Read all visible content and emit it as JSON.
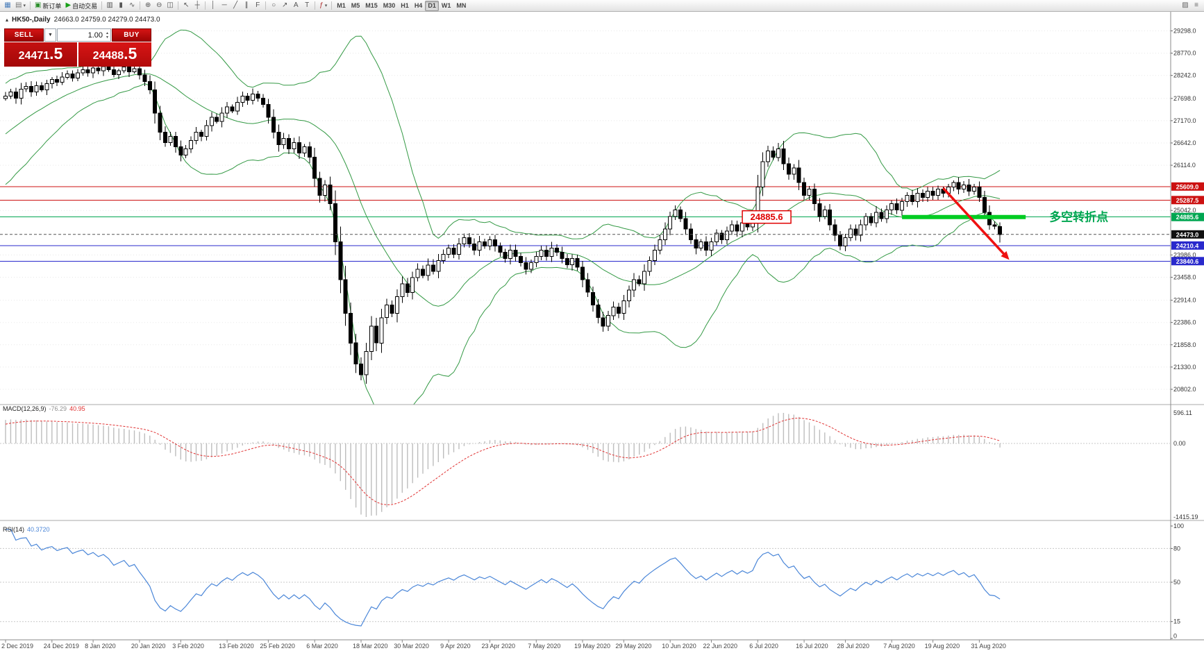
{
  "icons": {
    "caret": "▾",
    "collapse": "▴",
    "dropdown": "▼",
    "spin_up": "▲",
    "spin_down": "▼"
  },
  "toolbar": {
    "groups": [
      {
        "items": [
          {
            "name": "new-chart-button",
            "glyph": "▦",
            "color": "#4a7ebb"
          },
          {
            "name": "chart-profiles-button",
            "glyph": "▤",
            "color": "#777777",
            "caret": true
          }
        ]
      },
      {
        "items": [
          {
            "name": "new-order-button",
            "glyph": "▣",
            "color": "#2d8f2d",
            "label": "新订单"
          },
          {
            "name": "auto-trading-button",
            "glyph": "▶",
            "color": "#18a018",
            "label": "自动交易"
          }
        ]
      },
      {
        "items": [
          {
            "name": "bar-chart-button",
            "glyph": "▥",
            "color": "#555555"
          },
          {
            "name": "candlestick-chart-button",
            "glyph": "▮",
            "color": "#555555"
          },
          {
            "name": "line-chart-button",
            "glyph": "∿",
            "color": "#555555"
          }
        ]
      },
      {
        "items": [
          {
            "name": "zoom-in-button",
            "glyph": "⊕",
            "color": "#555555"
          },
          {
            "name": "zoom-out-button",
            "glyph": "⊖",
            "color": "#555555"
          },
          {
            "name": "tile-windows-button",
            "glyph": "◫",
            "color": "#555555"
          }
        ]
      },
      {
        "items": [
          {
            "name": "cursor-button",
            "glyph": "↖",
            "color": "#555555"
          },
          {
            "name": "crosshair-button",
            "glyph": "┼",
            "color": "#555555"
          }
        ]
      },
      {
        "items": [
          {
            "name": "vertical-line-button",
            "glyph": "│",
            "color": "#555555"
          },
          {
            "name": "horizontal-line-button",
            "glyph": "─",
            "color": "#555555"
          },
          {
            "name": "trendline-button",
            "glyph": "╱",
            "color": "#555555"
          },
          {
            "name": "equidistant-channel-button",
            "glyph": "∥",
            "color": "#555555"
          },
          {
            "name": "fibonacci-button",
            "glyph": "F",
            "color": "#555555"
          }
        ]
      },
      {
        "items": [
          {
            "name": "shapes-button",
            "glyph": "○",
            "color": "#555555"
          },
          {
            "name": "arrows-button",
            "glyph": "↗",
            "color": "#555555"
          },
          {
            "name": "text-button",
            "glyph": "A",
            "color": "#555555"
          },
          {
            "name": "text-label-button",
            "glyph": "T",
            "color": "#555555"
          }
        ]
      },
      {
        "items": [
          {
            "name": "indicators-button",
            "glyph": "ƒ",
            "color": "#b03030",
            "caret": true
          }
        ]
      },
      {
        "timeframes": [
          "M1",
          "M5",
          "M15",
          "M30",
          "H1",
          "H4",
          "D1",
          "W1",
          "MN"
        ],
        "active": "D1"
      }
    ],
    "right_items": [
      {
        "name": "data-window-button",
        "glyph": "▨",
        "color": "#666666"
      },
      {
        "name": "full-screen-button",
        "glyph": "≡",
        "color": "#666666"
      }
    ]
  },
  "header": {
    "symbol": "HK50-,Daily",
    "ohlc": "24663.0 24759.0 24279.0 24473.0"
  },
  "trade_panel": {
    "sell_label": "SELL",
    "buy_label": "BUY",
    "volume": "1.00",
    "sell_price_main": "24471",
    "sell_price_frac": ".5",
    "buy_price_main": "24488",
    "buy_price_frac": ".5"
  },
  "chart_data": {
    "type": "candlestick+indicators",
    "symbol": "HK50-",
    "timeframe": "Daily",
    "last_bar": {
      "open": 24663.0,
      "high": 24759.0,
      "low": 24279.0,
      "close": 24473.0
    },
    "close_series": [
      27750,
      27850,
      27700,
      27920,
      27980,
      27850,
      28000,
      27900,
      28050,
      28150,
      28080,
      28200,
      28280,
      28180,
      28300,
      28380,
      28300,
      28420,
      28350,
      28450,
      28380,
      28260,
      28350,
      28440,
      28330,
      28400,
      28250,
      28100,
      27900,
      27350,
      26900,
      26650,
      26800,
      26550,
      26350,
      26500,
      26700,
      26900,
      26800,
      27050,
      27250,
      27150,
      27350,
      27500,
      27400,
      27600,
      27750,
      27650,
      27800,
      27700,
      27550,
      27250,
      26900,
      26600,
      26750,
      26500,
      26650,
      26400,
      26550,
      26300,
      25800,
      25400,
      25650,
      25200,
      24300,
      23400,
      22600,
      21900,
      21400,
      21150,
      21700,
      22300,
      21900,
      22500,
      22800,
      22600,
      23000,
      23300,
      23100,
      23450,
      23650,
      23500,
      23750,
      23600,
      23850,
      24000,
      24150,
      24000,
      24250,
      24400,
      24250,
      24100,
      24300,
      24200,
      24350,
      24200,
      24050,
      23900,
      24100,
      23950,
      23800,
      23650,
      23800,
      23950,
      24100,
      23950,
      24150,
      24050,
      23900,
      23750,
      23900,
      23700,
      23400,
      23100,
      22800,
      22500,
      22300,
      22550,
      22750,
      22600,
      22900,
      23150,
      23400,
      23300,
      23600,
      23850,
      24100,
      24350,
      24600,
      24900,
      25050,
      24850,
      24600,
      24350,
      24150,
      24300,
      24100,
      24300,
      24500,
      24350,
      24550,
      24700,
      24550,
      24750,
      24650,
      24800,
      25600,
      26200,
      26450,
      26300,
      26500,
      26150,
      25900,
      26050,
      25700,
      25400,
      25550,
      25200,
      24900,
      25050,
      24700,
      24450,
      24200,
      24400,
      24600,
      24450,
      24700,
      24900,
      24750,
      25000,
      24850,
      25050,
      25200,
      25050,
      25250,
      25400,
      25250,
      25450,
      25350,
      25500,
      25400,
      25550,
      25450,
      25600,
      25700,
      25550,
      25650,
      25500,
      25600,
      25350,
      25000,
      24700,
      24663,
      24473
    ],
    "x_axis": {
      "labels": [
        {
          "label": "2 Dec 2019",
          "bar": 0
        },
        {
          "label": "24 Dec 2019",
          "bar": 9
        },
        {
          "label": "8 Jan 2020",
          "bar": 17
        },
        {
          "label": "20 Jan 2020",
          "bar": 26
        },
        {
          "label": "3 Feb 2020",
          "bar": 34
        },
        {
          "label": "13 Feb 2020",
          "bar": 43
        },
        {
          "label": "25 Feb 2020",
          "bar": 51
        },
        {
          "label": "6 Mar 2020",
          "bar": 60
        },
        {
          "label": "18 Mar 2020",
          "bar": 69
        },
        {
          "label": "30 Mar 2020",
          "bar": 77
        },
        {
          "label": "9 Apr 2020",
          "bar": 86
        },
        {
          "label": "23 Apr 2020",
          "bar": 94
        },
        {
          "label": "7 May 2020",
          "bar": 103
        },
        {
          "label": "19 May 2020",
          "bar": 112
        },
        {
          "label": "29 May 2020",
          "bar": 120
        },
        {
          "label": "10 Jun 2020",
          "bar": 129
        },
        {
          "label": "22 Jun 2020",
          "bar": 137
        },
        {
          "label": "6 Jul 2020",
          "bar": 146
        },
        {
          "label": "16 Jul 2020",
          "bar": 155
        },
        {
          "label": "28 Jul 2020",
          "bar": 163
        },
        {
          "label": "7 Aug 2020",
          "bar": 172
        },
        {
          "label": "19 Aug 2020",
          "bar": 180
        },
        {
          "label": "31 Aug 2020",
          "bar": 189
        }
      ]
    },
    "y_axis": {
      "min": 20440,
      "max": 29750,
      "ticks": [
        "29298.0",
        "28770.0",
        "28242.0",
        "27698.0",
        "27170.0",
        "26642.0",
        "26114.0",
        "25042.0",
        "23986.0",
        "23458.0",
        "22914.0",
        "22386.0",
        "21858.0",
        "21330.0",
        "20802.0"
      ]
    },
    "bollinger": {
      "period": 20,
      "deviation": 2,
      "color": "#339944"
    },
    "hlines": [
      {
        "price": 25609.0,
        "label": "25609.0",
        "color": "#cc1111",
        "label_bg": "#cc1111"
      },
      {
        "price": 25287.5,
        "label": "25287.5",
        "color": "#cc1111",
        "label_bg": "#cc1111"
      },
      {
        "price": 24885.6,
        "label": "24885.6",
        "color": "#00a651",
        "label_bg": "#00a651"
      },
      {
        "price": 24210.4,
        "label": "24210.4",
        "color": "#2929cc",
        "label_bg": "#2929cc"
      },
      {
        "price": 23840.6,
        "label": "23840.6",
        "color": "#2929cc",
        "label_bg": "#2929cc"
      }
    ],
    "current_price": {
      "price": 24473.0,
      "label": "24473.0",
      "color": "#111111"
    },
    "annotations": {
      "price_flag": {
        "text": "24885.6",
        "bar": 143,
        "price": 24885.6,
        "color": "#e00000"
      },
      "thick_segment": {
        "price": 24885.6,
        "bar_start": 174,
        "bar_end": 198,
        "color": "#00cc22",
        "width": 6
      },
      "arrow": {
        "from": {
          "bar": 182,
          "price": 25570
        },
        "to": {
          "bar": 194,
          "price": 23980
        },
        "color": "#ee1111"
      },
      "turning_point_text": {
        "text": "多空转折点",
        "color": "#00a651",
        "price": 24885.6
      }
    },
    "macd": {
      "label": "MACD(12,26,9)",
      "value_main": "-76.29",
      "value_signal": "40.95",
      "axis_labels": [
        "596.11",
        "0.00",
        "-1415.19"
      ],
      "hist_color": "#bdbdbd",
      "signal_color": "#e03131"
    },
    "rsi": {
      "label": "RSI(14)",
      "value": "40.3720",
      "axis_labels": [
        "100",
        "80",
        "50",
        "15",
        "0"
      ],
      "levels": [
        80,
        50,
        15
      ],
      "color": "#4a86d8"
    }
  }
}
